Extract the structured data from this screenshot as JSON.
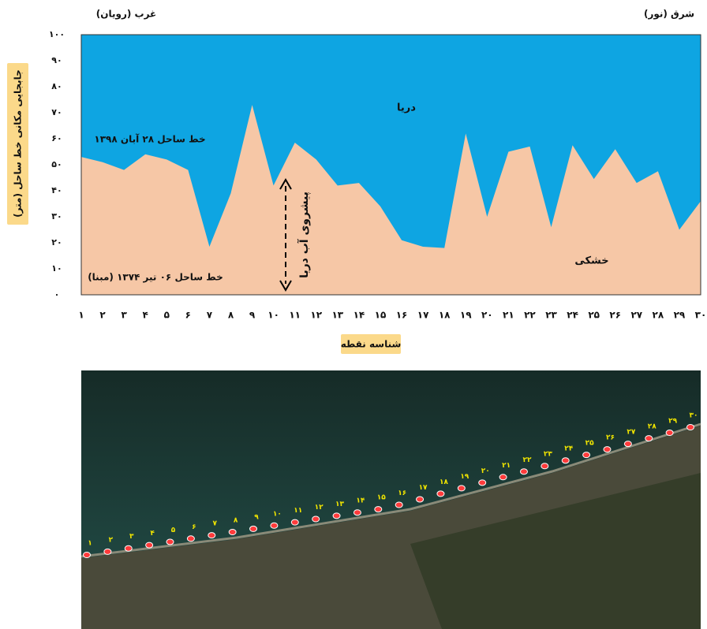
{
  "chart_data": {
    "type": "area",
    "west_label": "غرب (رویان)",
    "east_label": "شرق (نور)",
    "y_label": "جابجایی مکانی خط ساحل (متر)",
    "x_label": "شناسه نقطه",
    "sea_label": "دریا",
    "land_label": "خشکی",
    "current_line_label": "خط ساحل ۲۸ آبان ۱۳۹۸",
    "base_line_label": "خط ساحل ۰۶ تیر ۱۳۷۴ (مبنا)",
    "arrow_label": "پیشروی آب دریا",
    "categories": [
      "۱",
      "۲",
      "۳",
      "۴",
      "۵",
      "۶",
      "۷",
      "۸",
      "۹",
      "۱۰",
      "۱۱",
      "۱۲",
      "۱۳",
      "۱۴",
      "۱۵",
      "۱۶",
      "۱۷",
      "۱۸",
      "۱۹",
      "۲۰",
      "۲۱",
      "۲۲",
      "۲۳",
      "۲۴",
      "۲۵",
      "۲۶",
      "۲۷",
      "۲۸",
      "۲۹",
      "۳۰"
    ],
    "values": [
      53,
      51,
      48,
      54,
      52,
      48,
      18.5,
      39,
      73,
      42,
      58.5,
      52,
      42,
      43,
      34,
      21,
      18.5,
      18,
      62,
      30,
      55,
      57,
      26,
      57.5,
      44.5,
      56,
      43,
      47.5,
      25,
      36
    ],
    "color": "#f6c7a6",
    "sea_color": "#0ea5e2",
    "ylim": [
      0,
      100
    ],
    "yticks": [
      {
        "value": 0,
        "label": "۰"
      },
      {
        "value": 10,
        "label": "۱۰"
      },
      {
        "value": 20,
        "label": "۲۰"
      },
      {
        "value": 30,
        "label": "۳۰"
      },
      {
        "value": 40,
        "label": "۴۰"
      },
      {
        "value": 50,
        "label": "۵۰"
      },
      {
        "value": 60,
        "label": "۶۰"
      },
      {
        "value": 70,
        "label": "۷۰"
      },
      {
        "value": 80,
        "label": "۸۰"
      },
      {
        "value": 90,
        "label": "۹۰"
      },
      {
        "value": 100,
        "label": "۱۰۰"
      }
    ],
    "grid": false
  }
}
